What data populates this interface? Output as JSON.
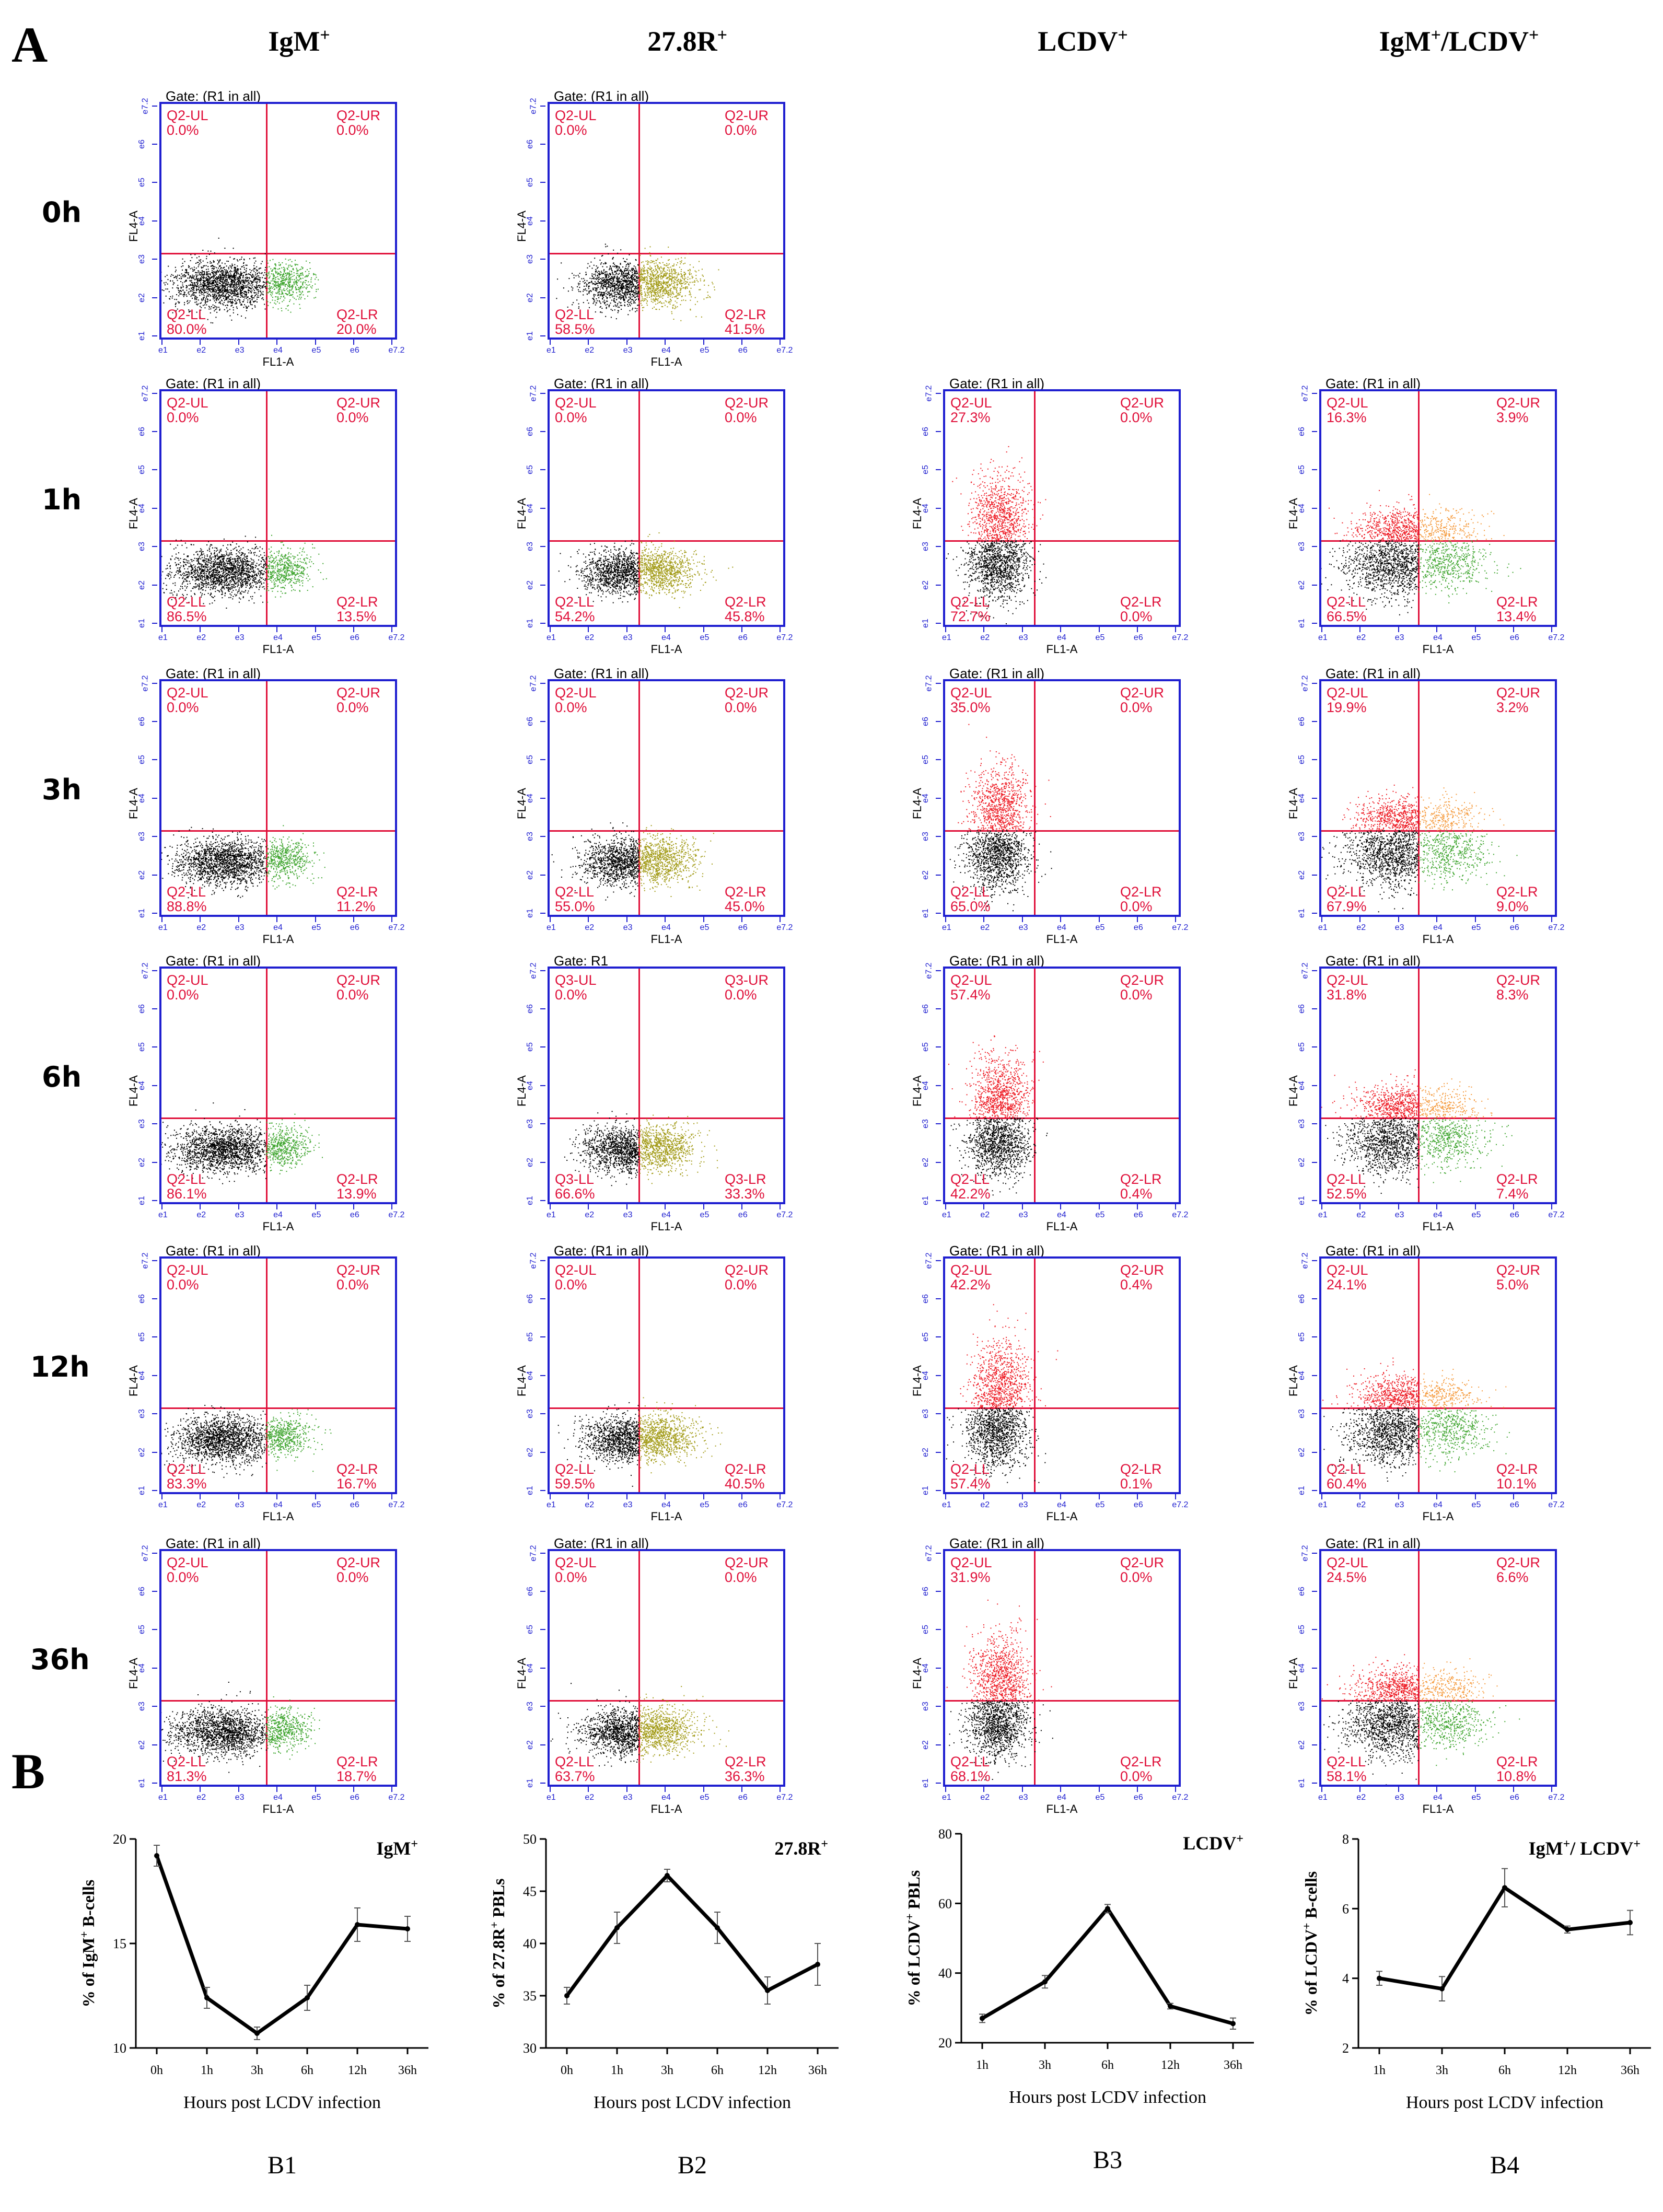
{
  "panel_a_label": "A",
  "panel_b_label": "B",
  "columns": [
    {
      "base": "IgM",
      "sup": "+"
    },
    {
      "base": "27.8R",
      "sup": "+"
    },
    {
      "base": "LCDV",
      "sup": "+"
    },
    {
      "base": "IgM",
      "sup": "+",
      "tail": "/LCDV",
      "tail_sup": "+"
    }
  ],
  "rows": [
    "0h",
    "1h",
    "3h",
    "6h",
    "12h",
    "36h"
  ],
  "axis": {
    "x": "FL1-A",
    "y": "FL4-A"
  },
  "x_ticks": [
    "10^1",
    "10^2",
    "10^3",
    "10^4",
    "10^5",
    "10^6",
    "10^7.2"
  ],
  "y_ticks": [
    "10^1",
    "10^2",
    "10^3",
    "10^4",
    "10^5",
    "10^6",
    "10^7.2"
  ],
  "colors": {
    "frame": "#1f1fd0",
    "gate": "#e0103a",
    "neg": "#000000",
    "green": "#3fa52f",
    "olive": "#a39c1a",
    "red": "#ee1c25",
    "orange": "#f59a3c"
  },
  "flow_plots": [
    [
      {
        "gate": "Gate: (R1 in all)",
        "ul": "Q2-UL",
        "ul_v": "0.0%",
        "ur": "Q2-UR",
        "ur_v": "0.0%",
        "ll": "Q2-LL",
        "ll_v": "80.0%",
        "lr": "Q2-LR",
        "lr_v": "20.0%",
        "type": "igm"
      },
      {
        "gate": "Gate: (R1 in all)",
        "ul": "Q2-UL",
        "ul_v": "0.0%",
        "ur": "Q2-UR",
        "ur_v": "0.0%",
        "ll": "Q2-LL",
        "ll_v": "58.5%",
        "lr": "Q2-LR",
        "lr_v": "41.5%",
        "type": "r278"
      },
      null,
      null
    ],
    [
      {
        "gate": "Gate: (R1 in all)",
        "ul": "Q2-UL",
        "ul_v": "0.0%",
        "ur": "Q2-UR",
        "ur_v": "0.0%",
        "ll": "Q2-LL",
        "ll_v": "86.5%",
        "lr": "Q2-LR",
        "lr_v": "13.5%",
        "type": "igm"
      },
      {
        "gate": "Gate: (R1 in all)",
        "ul": "Q2-UL",
        "ul_v": "0.0%",
        "ur": "Q2-UR",
        "ur_v": "0.0%",
        "ll": "Q2-LL",
        "ll_v": "54.2%",
        "lr": "Q2-LR",
        "lr_v": "45.8%",
        "type": "r278"
      },
      {
        "gate": "Gate: (R1 in all)",
        "ul": "Q2-UL",
        "ul_v": "27.3%",
        "ur": "Q2-UR",
        "ur_v": "0.0%",
        "ll": "Q2-LL",
        "ll_v": "72.7%",
        "lr": "Q2-LR",
        "lr_v": "0.0%",
        "type": "lcdv"
      },
      {
        "gate": "Gate: (R1 in all)",
        "ul": "Q2-UL",
        "ul_v": "16.3%",
        "ur": "Q2-UR",
        "ur_v": "3.9%",
        "ll": "Q2-LL",
        "ll_v": "66.5%",
        "lr": "Q2-LR",
        "lr_v": "13.4%",
        "type": "dual"
      }
    ],
    [
      {
        "gate": "Gate: (R1 in all)",
        "ul": "Q2-UL",
        "ul_v": "0.0%",
        "ur": "Q2-UR",
        "ur_v": "0.0%",
        "ll": "Q2-LL",
        "ll_v": "88.8%",
        "lr": "Q2-LR",
        "lr_v": "11.2%",
        "type": "igm"
      },
      {
        "gate": "Gate: (R1 in all)",
        "ul": "Q2-UL",
        "ul_v": "0.0%",
        "ur": "Q2-UR",
        "ur_v": "0.0%",
        "ll": "Q2-LL",
        "ll_v": "55.0%",
        "lr": "Q2-LR",
        "lr_v": "45.0%",
        "type": "r278"
      },
      {
        "gate": "Gate: (R1 in all)",
        "ul": "Q2-UL",
        "ul_v": "35.0%",
        "ur": "Q2-UR",
        "ur_v": "0.0%",
        "ll": "Q2-LL",
        "ll_v": "65.0%",
        "lr": "Q2-LR",
        "lr_v": "0.0%",
        "type": "lcdv"
      },
      {
        "gate": "Gate: (R1 in all)",
        "ul": "Q2-UL",
        "ul_v": "19.9%",
        "ur": "Q2-UR",
        "ur_v": "3.2%",
        "ll": "Q2-LL",
        "ll_v": "67.9%",
        "lr": "Q2-LR",
        "lr_v": "9.0%",
        "type": "dual"
      }
    ],
    [
      {
        "gate": "Gate: (R1 in all)",
        "ul": "Q2-UL",
        "ul_v": "0.0%",
        "ur": "Q2-UR",
        "ur_v": "0.0%",
        "ll": "Q2-LL",
        "ll_v": "86.1%",
        "lr": "Q2-LR",
        "lr_v": "13.9%",
        "type": "igm"
      },
      {
        "gate": "Gate: R1",
        "ul": "Q3-UL",
        "ul_v": "0.0%",
        "ur": "Q3-UR",
        "ur_v": "0.0%",
        "ll": "Q3-LL",
        "ll_v": "66.6%",
        "lr": "Q3-LR",
        "lr_v": "33.3%",
        "type": "r278"
      },
      {
        "gate": "Gate: (R1 in all)",
        "ul": "Q2-UL",
        "ul_v": "57.4%",
        "ur": "Q2-UR",
        "ur_v": "0.0%",
        "ll": "Q2-LL",
        "ll_v": "42.2%",
        "lr": "Q2-LR",
        "lr_v": "0.4%",
        "type": "lcdv"
      },
      {
        "gate": "Gate: (R1 in all)",
        "ul": "Q2-UL",
        "ul_v": "31.8%",
        "ur": "Q2-UR",
        "ur_v": "8.3%",
        "ll": "Q2-LL",
        "ll_v": "52.5%",
        "lr": "Q2-LR",
        "lr_v": "7.4%",
        "type": "dual"
      }
    ],
    [
      {
        "gate": "Gate: (R1 in all)",
        "ul": "Q2-UL",
        "ul_v": "0.0%",
        "ur": "Q2-UR",
        "ur_v": "0.0%",
        "ll": "Q2-LL",
        "ll_v": "83.3%",
        "lr": "Q2-LR",
        "lr_v": "16.7%",
        "type": "igm"
      },
      {
        "gate": "Gate: (R1 in all)",
        "ul": "Q2-UL",
        "ul_v": "0.0%",
        "ur": "Q2-UR",
        "ur_v": "0.0%",
        "ll": "Q2-LL",
        "ll_v": "59.5%",
        "lr": "Q2-LR",
        "lr_v": "40.5%",
        "type": "r278"
      },
      {
        "gate": "Gate: (R1 in all)",
        "ul": "Q2-UL",
        "ul_v": "42.2%",
        "ur": "Q2-UR",
        "ur_v": "0.4%",
        "ll": "Q2-LL",
        "ll_v": "57.4%",
        "lr": "Q2-LR",
        "lr_v": "0.1%",
        "type": "lcdv"
      },
      {
        "gate": "Gate: (R1 in all)",
        "ul": "Q2-UL",
        "ul_v": "24.1%",
        "ur": "Q2-UR",
        "ur_v": "5.0%",
        "ll": "Q2-LL",
        "ll_v": "60.4%",
        "lr": "Q2-LR",
        "lr_v": "10.1%",
        "type": "dual"
      }
    ],
    [
      {
        "gate": "Gate: (R1 in all)",
        "ul": "Q2-UL",
        "ul_v": "0.0%",
        "ur": "Q2-UR",
        "ur_v": "0.0%",
        "ll": "Q2-LL",
        "ll_v": "81.3%",
        "lr": "Q2-LR",
        "lr_v": "18.7%",
        "type": "igm"
      },
      {
        "gate": "Gate: (R1 in all)",
        "ul": "Q2-UL",
        "ul_v": "0.0%",
        "ur": "Q2-UR",
        "ur_v": "0.0%",
        "ll": "Q2-LL",
        "ll_v": "63.7%",
        "lr": "Q2-LR",
        "lr_v": "36.3%",
        "type": "r278"
      },
      {
        "gate": "Gate: (R1 in all)",
        "ul": "Q2-UL",
        "ul_v": "31.9%",
        "ur": "Q2-UR",
        "ur_v": "0.0%",
        "ll": "Q2-LL",
        "ll_v": "68.1%",
        "lr": "Q2-LR",
        "lr_v": "0.0%",
        "type": "lcdv"
      },
      {
        "gate": "Gate: (R1 in all)",
        "ul": "Q2-UL",
        "ul_v": "24.5%",
        "ur": "Q2-UR",
        "ur_v": "6.6%",
        "ll": "Q2-LL",
        "ll_v": "58.1%",
        "lr": "Q2-LR",
        "lr_v": "10.8%",
        "type": "dual"
      }
    ]
  ],
  "chart_data": [
    {
      "type": "line",
      "id": "B1",
      "caption": "B1",
      "title": "IgM",
      "title_sup": "+",
      "ylabel": "% of IgM",
      "ylabel_sup": "+",
      "ylabel_tail": " B-cells",
      "xlabel": "Hours post LCDV infection",
      "categories": [
        "0h",
        "1h",
        "3h",
        "6h",
        "12h",
        "36h"
      ],
      "values": [
        19.2,
        12.4,
        10.7,
        12.4,
        15.9,
        15.7
      ],
      "errors": [
        0.5,
        0.5,
        0.3,
        0.6,
        0.8,
        0.6
      ],
      "ylim": [
        10,
        20
      ],
      "yticks": [
        10,
        15,
        20
      ]
    },
    {
      "type": "line",
      "id": "B2",
      "caption": "B2",
      "title": "27.8R",
      "title_sup": "+",
      "ylabel": "% of 27.8R",
      "ylabel_sup": "+",
      "ylabel_tail": " PBLs",
      "xlabel": "Hours post LCDV infection",
      "categories": [
        "0h",
        "1h",
        "3h",
        "6h",
        "12h",
        "36h"
      ],
      "values": [
        35.0,
        41.5,
        46.5,
        41.5,
        35.5,
        38.0
      ],
      "errors": [
        0.8,
        1.5,
        0.6,
        1.5,
        1.3,
        2.0
      ],
      "ylim": [
        30,
        50
      ],
      "yticks": [
        30,
        35,
        40,
        45,
        50
      ]
    },
    {
      "type": "line",
      "id": "B3",
      "caption": "B3",
      "title": "LCDV",
      "title_sup": "+",
      "ylabel": "% of LCDV",
      "ylabel_sup": "+",
      "ylabel_tail": " PBLs",
      "xlabel": "Hours post LCDV infection",
      "categories": [
        "1h",
        "3h",
        "6h",
        "12h",
        "36h"
      ],
      "values": [
        27,
        37.5,
        58.5,
        30.5,
        25.5
      ],
      "errors": [
        1.2,
        1.8,
        1.2,
        0.8,
        1.6
      ],
      "ylim": [
        20,
        80
      ],
      "yticks": [
        20,
        40,
        60,
        80
      ]
    },
    {
      "type": "line",
      "id": "B4",
      "caption": "B4",
      "title": "IgM",
      "title_sup": "+",
      "title_tail": "/ LCDV",
      "title_tail_sup": "+",
      "ylabel": "% of LCDV",
      "ylabel_sup": "+",
      "ylabel_tail": " B-cells",
      "xlabel": "Hours post LCDV infection",
      "categories": [
        "1h",
        "3h",
        "6h",
        "12h",
        "36h"
      ],
      "values": [
        4.0,
        3.7,
        6.6,
        5.4,
        5.6
      ],
      "errors": [
        0.2,
        0.35,
        0.55,
        0.1,
        0.35
      ],
      "ylim": [
        2,
        8
      ],
      "yticks": [
        2,
        4,
        6,
        8
      ]
    }
  ]
}
